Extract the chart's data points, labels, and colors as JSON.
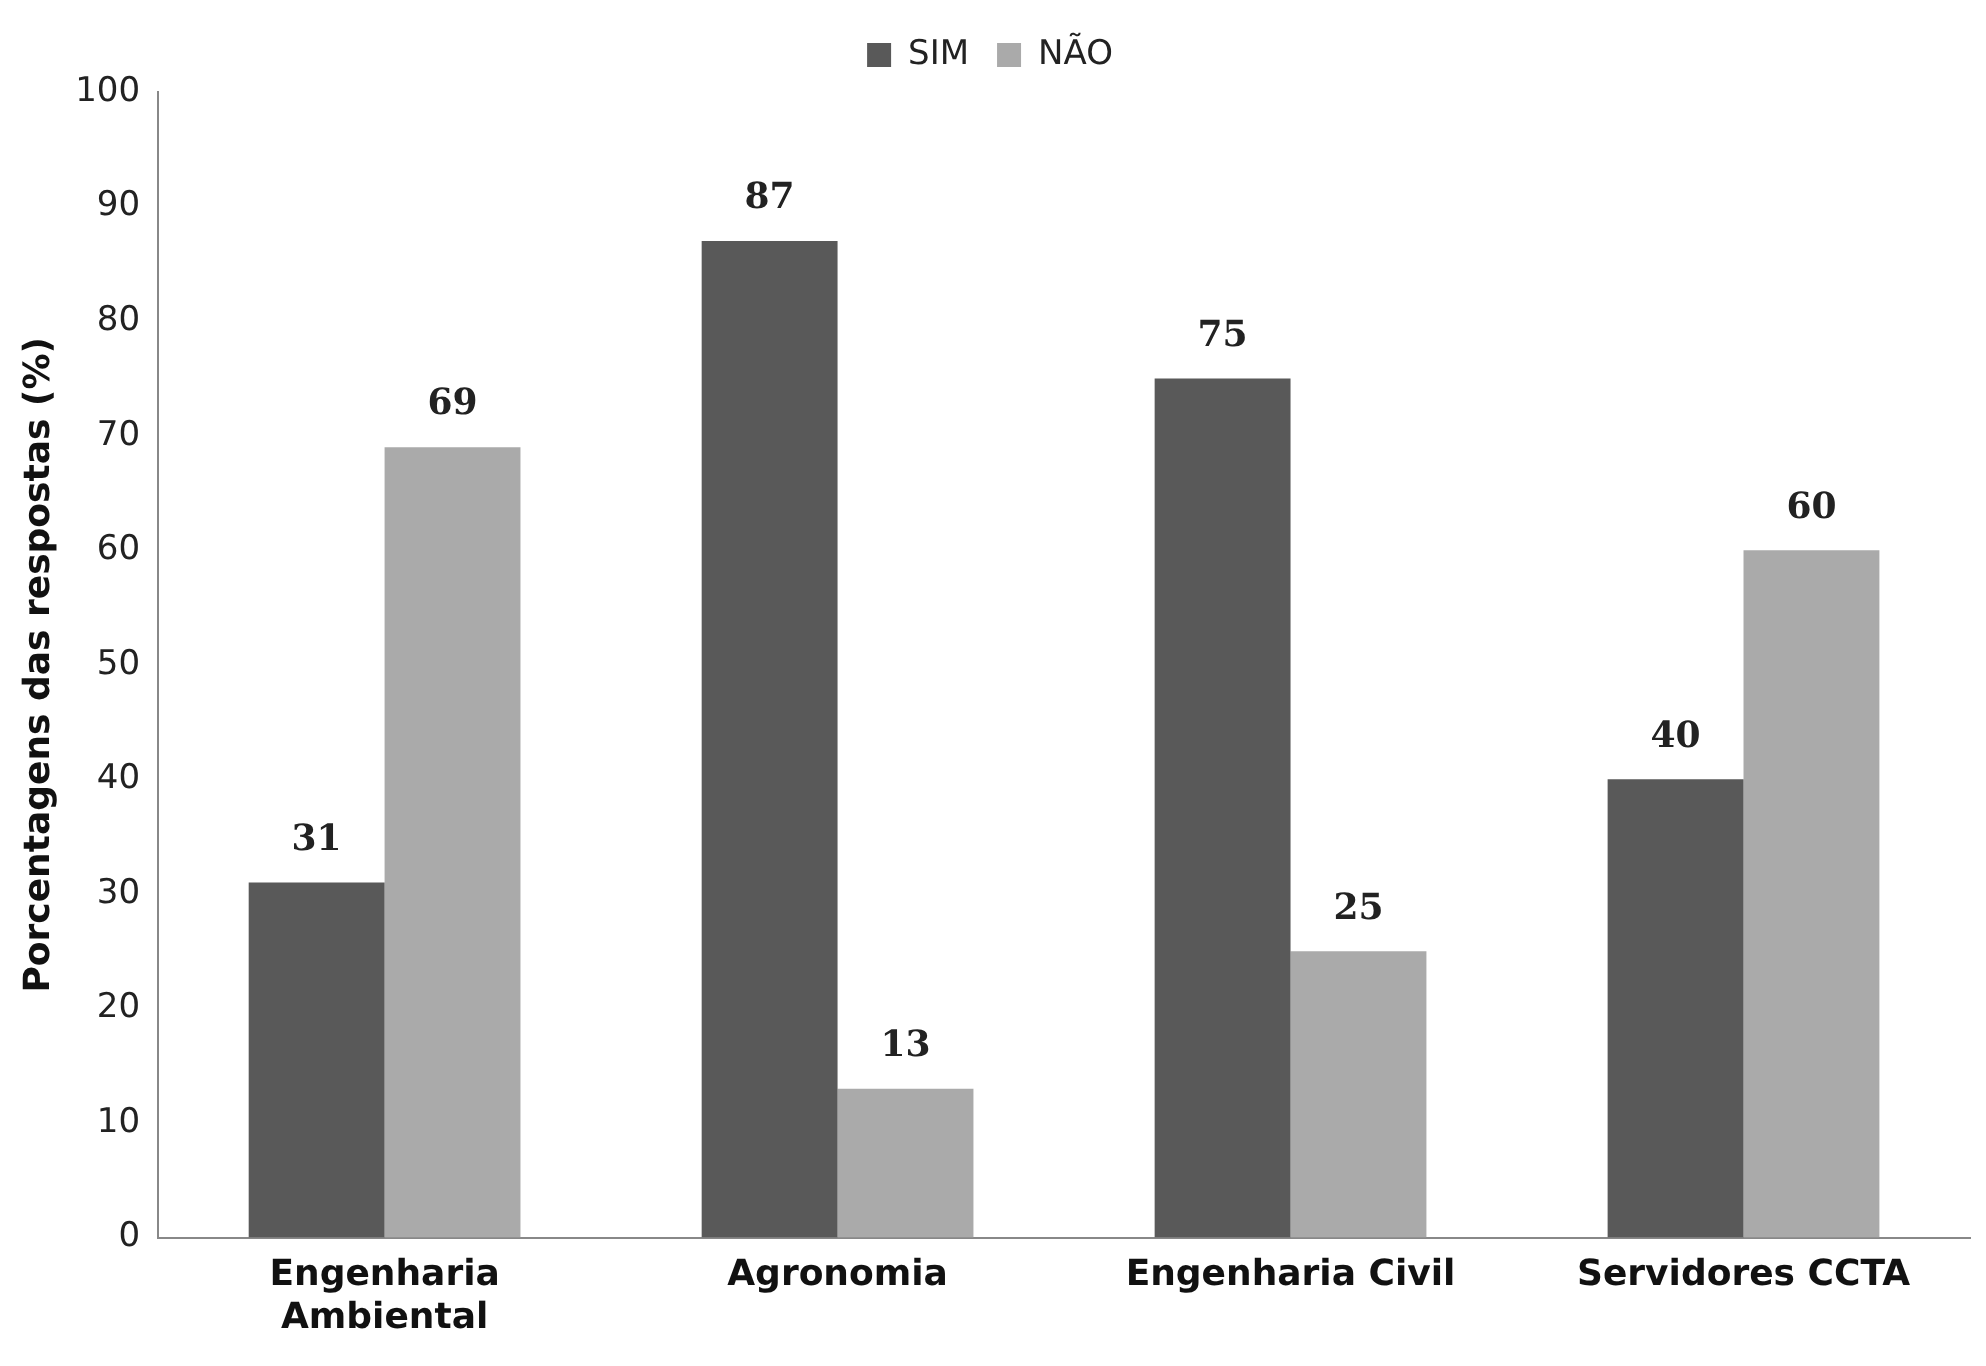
{
  "chart_data": {
    "type": "bar",
    "ylabel": "Porcentagens das respostas (%)",
    "categories": [
      "Engenharia Ambiental",
      "Agronomia",
      "Engenharia Civil",
      "Servidores CCTA"
    ],
    "series": [
      {
        "name": "SIM",
        "color": "#595959",
        "values": [
          31,
          87,
          75,
          40
        ]
      },
      {
        "name": "NÃO",
        "color": "#aaaaaa",
        "values": [
          69,
          13,
          25,
          60
        ]
      }
    ],
    "ylim": [
      0,
      100
    ],
    "yticks": [
      0,
      10,
      20,
      30,
      40,
      50,
      60,
      70,
      80,
      90,
      100
    ],
    "grid": false,
    "legend": "top",
    "data_labels": true
  }
}
